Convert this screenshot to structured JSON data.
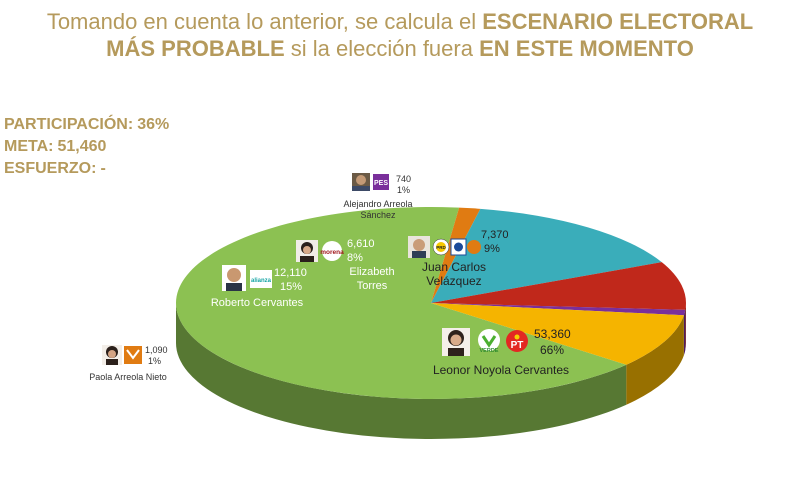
{
  "title": {
    "part1": "Tomando en cuenta lo anterior, se calcula el",
    "part2": "ESCENARIO ELECTORAL",
    "part3": "MÁS PROBABLE",
    "part4": "si la elección fuera",
    "part5": "EN ESTE MOMENTO"
  },
  "stats": {
    "participacion_label": "PARTICIPACIÓN:",
    "participacion_value": "36%",
    "meta_label": "META:",
    "meta_value": "51,460",
    "esfuerzo_label": "ESFUERZO:",
    "esfuerzo_value": "-"
  },
  "colors": {
    "title": "#b59a5c",
    "green": "#8cc152",
    "teal": "#3aadba",
    "red": "#c0281b",
    "gold": "#f5b400",
    "purple": "#7a2f9b",
    "orange": "#e07b12"
  },
  "chart_data": {
    "type": "pie",
    "title": "",
    "slices": [
      {
        "name": "Leonor Noyola Cervantes",
        "value": 53360,
        "percent": "66%",
        "value_label": "53,360",
        "color": "#8cc152",
        "parties": [
          "VERDE",
          "PT"
        ]
      },
      {
        "name": "Paola Arreola Nieto",
        "value": 1090,
        "percent": "1%",
        "value_label": "1,090",
        "color": "#e07b12",
        "parties": [
          "MC"
        ]
      },
      {
        "name": "Roberto Cervantes",
        "value": 12110,
        "percent": "15%",
        "value_label": "12,110",
        "color": "#3aadba",
        "parties": [
          "alianza"
        ]
      },
      {
        "name": "Elizabeth Torres",
        "value": 6610,
        "percent": "8%",
        "value_label": "6,610",
        "color": "#c0281b",
        "parties": [
          "morena"
        ]
      },
      {
        "name": "Alejandro Arreola Sánchez",
        "value": 740,
        "percent": "1%",
        "value_label": "740",
        "color": "#7a2f9b",
        "parties": [
          "PES"
        ]
      },
      {
        "name": "Juan Carlos Velázquez",
        "value": 7370,
        "percent": "9%",
        "value_label": "7,370",
        "color": "#f5b400",
        "parties": [
          "PRD",
          "PAN",
          "MC"
        ]
      }
    ],
    "labels": {
      "leonor_name": "Leonor Noyola Cervantes",
      "leonor_value": "53,360",
      "leonor_pct": "66%",
      "paola_name": "Paola Arreola Nieto",
      "paola_value": "1,090",
      "paola_pct": "1%",
      "roberto_name": "Roberto Cervantes",
      "roberto_value": "12,110",
      "roberto_pct": "15%",
      "eli_name1": "Elizabeth",
      "eli_name2": "Torres",
      "eli_value": "6,610",
      "eli_pct": "8%",
      "alej_name1": "Alejandro Arreola",
      "alej_name2": "Sánchez",
      "alej_value": "740",
      "alej_pct": "1%",
      "juan_name1": "Juan Carlos",
      "juan_name2": "Velázquez",
      "juan_value": "7,370",
      "juan_pct": "9%",
      "morena_logo": "morena",
      "verde_logo": "VERDE",
      "pt_logo": "PT",
      "pes_logo": "PES",
      "prd_logo": "PRD",
      "alianza_logo": "alianza"
    }
  }
}
